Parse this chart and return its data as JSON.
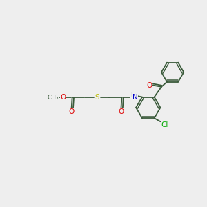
{
  "background_color": "#eeeeee",
  "fig_size": [
    3.0,
    3.0
  ],
  "dpi": 100,
  "bond_color": "#3a5a3a",
  "bond_lw": 1.3,
  "atom_colors": {
    "O": "#dd0000",
    "S": "#bbbb00",
    "N": "#0000cc",
    "Cl": "#00aa00",
    "C": "#3a5a3a",
    "H": "#888888"
  },
  "font_size": 7.5,
  "font_size_sub": 6.5
}
